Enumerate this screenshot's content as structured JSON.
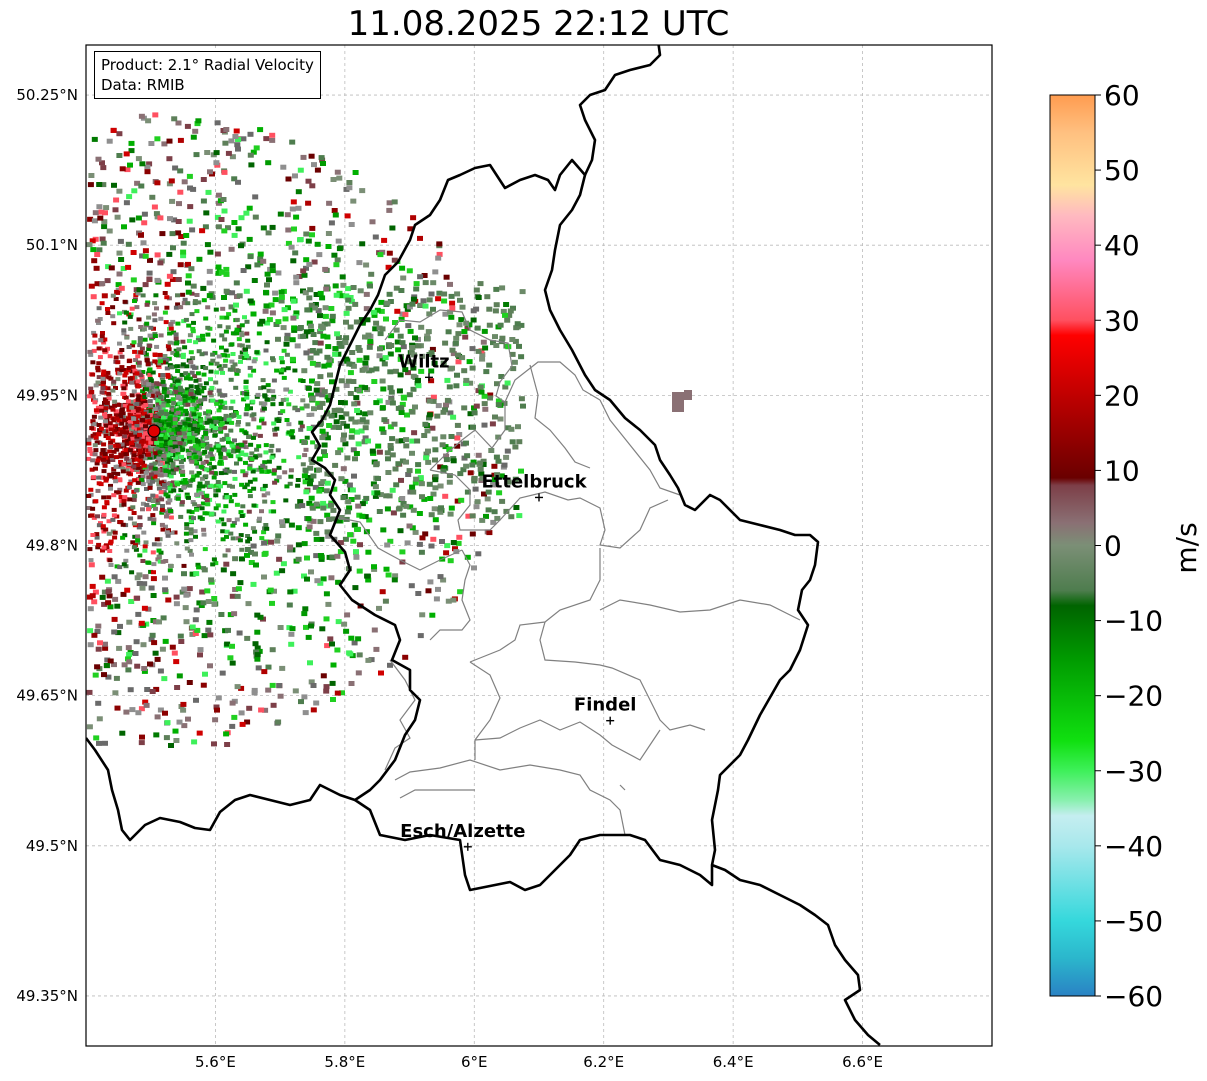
{
  "title": "11.08.2025 22:12 UTC",
  "info": {
    "product": "Product: 2.1° Radial Velocity",
    "data": "Data: RMIB"
  },
  "axes": {
    "lon_ticks": [
      "5.6°E",
      "5.8°E",
      "6°E",
      "6.2°E",
      "6.4°E",
      "6.6°E"
    ],
    "lat_ticks": [
      "50.25°N",
      "50.1°N",
      "49.95°N",
      "49.8°N",
      "49.65°N",
      "49.5°N",
      "49.35°N"
    ],
    "lon_range": [
      5.4,
      6.8
    ],
    "lat_range": [
      49.3,
      50.3
    ],
    "grid": true
  },
  "cities": [
    {
      "name": "Wiltz",
      "lon": 5.93,
      "lat": 49.968
    },
    {
      "name": "Ettelbruck",
      "lon": 6.1,
      "lat": 49.848
    },
    {
      "name": "Findel",
      "lon": 6.21,
      "lat": 49.625
    },
    {
      "name": "Esch/Alzette",
      "lon": 5.99,
      "lat": 49.499
    }
  ],
  "radar_site": {
    "lon": 5.505,
    "lat": 49.915
  },
  "colorbar": {
    "unit": "m/s",
    "ticks": [
      "60",
      "50",
      "40",
      "30",
      "20",
      "10",
      "0",
      "−10",
      "−20",
      "−30",
      "−40",
      "−50",
      "−60"
    ],
    "range": [
      -60,
      60
    ],
    "stops": [
      {
        "v": -60,
        "c": "#2a82c4"
      },
      {
        "v": -55,
        "c": "#2bb6cc"
      },
      {
        "v": -50,
        "c": "#35d8dc"
      },
      {
        "v": -40,
        "c": "#a8e8ec"
      },
      {
        "v": -36,
        "c": "#c5eef0"
      },
      {
        "v": -34,
        "c": "#8af0b0"
      },
      {
        "v": -30,
        "c": "#3ef05a"
      },
      {
        "v": -26,
        "c": "#10e010"
      },
      {
        "v": -15,
        "c": "#009a00"
      },
      {
        "v": -8,
        "c": "#006400"
      },
      {
        "v": -6,
        "c": "#4e7d4e"
      },
      {
        "v": 0,
        "c": "#7b8f76"
      },
      {
        "v": 3,
        "c": "#8a7074"
      },
      {
        "v": 8,
        "c": "#7d3f48"
      },
      {
        "v": 9,
        "c": "#6a0000"
      },
      {
        "v": 18,
        "c": "#b00000"
      },
      {
        "v": 28,
        "c": "#ff0000"
      },
      {
        "v": 30,
        "c": "#ff5060"
      },
      {
        "v": 38,
        "c": "#ff88c0"
      },
      {
        "v": 44,
        "c": "#ffbac0"
      },
      {
        "v": 48,
        "c": "#ffe4a0"
      },
      {
        "v": 55,
        "c": "#ffc080"
      },
      {
        "v": 60,
        "c": "#ff9c50"
      }
    ]
  }
}
